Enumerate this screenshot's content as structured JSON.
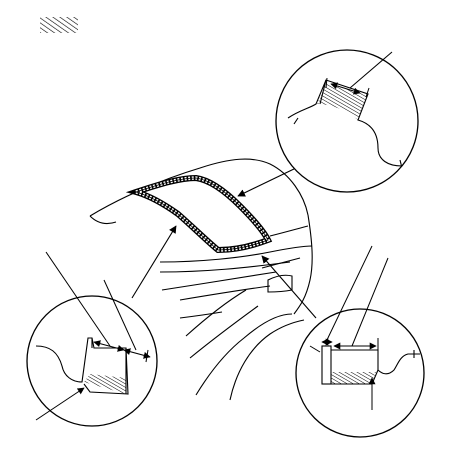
{
  "figure": {
    "legend": {
      "symbol": "hatch-swatch-icon"
    },
    "views": [
      {
        "id": "roof-rear-edge-detail"
      },
      {
        "id": "windshield-side-detail"
      },
      {
        "id": "quarter-panel-detail"
      }
    ],
    "colors": {
      "line": "#000000",
      "background": "#ffffff"
    }
  }
}
